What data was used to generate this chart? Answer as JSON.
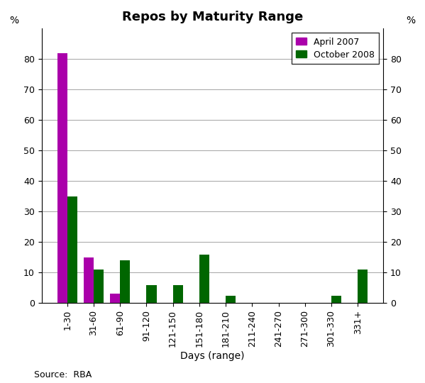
{
  "title": "Repos by Maturity Range",
  "categories": [
    "1-30",
    "31-60",
    "61-90",
    "91-120",
    "121-150",
    "151-180",
    "181-210",
    "211-240",
    "241-270",
    "271-300",
    "301-330",
    "331+"
  ],
  "april_2007": [
    82,
    15,
    3,
    0,
    0,
    0,
    0,
    0,
    0,
    0,
    0,
    0
  ],
  "october_2008": [
    35,
    11,
    14,
    6,
    6,
    16,
    2.5,
    0,
    0,
    0,
    2.5,
    11
  ],
  "april_color": "#AA00AA",
  "october_color": "#006600",
  "xlabel": "Days (range)",
  "ylabel_left": "%",
  "ylabel_right": "%",
  "ylim": [
    0,
    90
  ],
  "yticks": [
    0,
    10,
    20,
    30,
    40,
    50,
    60,
    70,
    80
  ],
  "source_text": "Source:  RBA",
  "legend_labels": [
    "April 2007",
    "October 2008"
  ],
  "bar_width": 0.38,
  "figsize": [
    5.99,
    5.4
  ],
  "dpi": 100,
  "bg_color": "#f0f0f0"
}
